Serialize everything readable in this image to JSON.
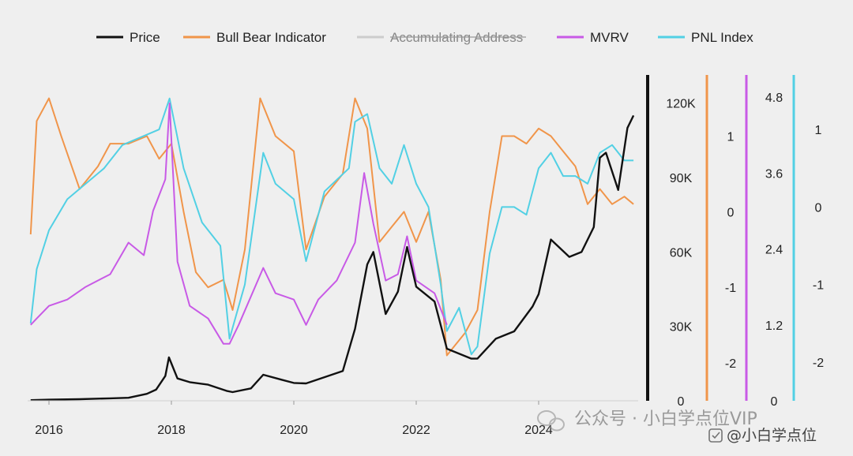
{
  "chart_data": {
    "type": "line",
    "x_ticks": [
      "2016",
      "2018",
      "2020",
      "2022",
      "2024"
    ],
    "legend_position": "top",
    "grid": false,
    "series": [
      {
        "name": "Price",
        "color": "#111111",
        "axis": "price",
        "enabled": true,
        "x": [
          2015.7,
          2016.0,
          2016.5,
          2017.0,
          2017.3,
          2017.6,
          2017.75,
          2017.9,
          2017.96,
          2018.1,
          2018.3,
          2018.6,
          2018.9,
          2019.0,
          2019.3,
          2019.5,
          2019.8,
          2020.0,
          2020.2,
          2020.5,
          2020.8,
          2021.0,
          2021.2,
          2021.3,
          2021.5,
          2021.7,
          2021.85,
          2022.0,
          2022.3,
          2022.5,
          2022.9,
          2023.0,
          2023.3,
          2023.6,
          2023.9,
          2024.0,
          2024.2,
          2024.5,
          2024.7,
          2024.9,
          2025.0,
          2025.1,
          2025.3,
          2025.45,
          2025.55
        ],
        "values": [
          250,
          430,
          650,
          1000,
          1200,
          2800,
          4500,
          10000,
          17500,
          9000,
          7500,
          6500,
          4000,
          3500,
          5000,
          10500,
          8500,
          7200,
          7000,
          9500,
          12000,
          29000,
          55000,
          60000,
          35000,
          44000,
          62000,
          46000,
          40000,
          21000,
          17000,
          17000,
          25000,
          28000,
          38000,
          43000,
          65000,
          58000,
          60000,
          70000,
          98000,
          100000,
          85000,
          110000,
          115000
        ]
      },
      {
        "name": "Bull Bear Indicator",
        "color": "#f0954a",
        "axis": "indicator",
        "enabled": true,
        "x": [
          2015.7,
          2015.8,
          2016.0,
          2016.2,
          2016.5,
          2016.8,
          2017.0,
          2017.3,
          2017.6,
          2017.8,
          2018.0,
          2018.2,
          2018.4,
          2018.6,
          2018.85,
          2019.0,
          2019.2,
          2019.45,
          2019.7,
          2020.0,
          2020.2,
          2020.5,
          2020.8,
          2021.0,
          2021.2,
          2021.4,
          2021.6,
          2021.8,
          2022.0,
          2022.2,
          2022.4,
          2022.5,
          2022.8,
          2023.0,
          2023.2,
          2023.4,
          2023.6,
          2023.8,
          2024.0,
          2024.2,
          2024.4,
          2024.6,
          2024.8,
          2025.0,
          2025.2,
          2025.4,
          2025.55
        ],
        "values": [
          -0.3,
          1.2,
          1.5,
          1.0,
          0.3,
          0.6,
          0.9,
          0.9,
          1.0,
          0.7,
          0.9,
          0.0,
          -0.8,
          -1.0,
          -0.9,
          -1.3,
          -0.5,
          1.5,
          1.0,
          0.8,
          -0.5,
          0.2,
          0.5,
          1.5,
          1.1,
          -0.4,
          -0.2,
          0.0,
          -0.4,
          0.0,
          -0.9,
          -1.9,
          -1.6,
          -1.3,
          0.0,
          1.0,
          1.0,
          0.9,
          1.1,
          1.0,
          0.8,
          0.6,
          0.1,
          0.3,
          0.1,
          0.2,
          0.1
        ]
      },
      {
        "name": "Accumulating Address",
        "color": "#cccccc",
        "axis": "none",
        "enabled": false,
        "x": [],
        "values": []
      },
      {
        "name": "MVRV",
        "color": "#c85ae6",
        "axis": "mvrv",
        "enabled": true,
        "x": [
          2015.7,
          2015.8,
          2016.0,
          2016.3,
          2016.6,
          2017.0,
          2017.3,
          2017.55,
          2017.7,
          2017.9,
          2017.97,
          2018.1,
          2018.3,
          2018.6,
          2018.85,
          2018.95,
          2019.1,
          2019.5,
          2019.7,
          2020.0,
          2020.2,
          2020.4,
          2020.7,
          2021.0,
          2021.15,
          2021.3,
          2021.5,
          2021.7,
          2021.85,
          2022.0,
          2022.3,
          2022.5
        ],
        "values": [
          1.2,
          1.3,
          1.5,
          1.6,
          1.8,
          2.0,
          2.5,
          2.3,
          3.0,
          3.5,
          4.7,
          2.2,
          1.5,
          1.3,
          0.9,
          0.9,
          1.2,
          2.1,
          1.7,
          1.6,
          1.2,
          1.6,
          1.9,
          2.5,
          3.6,
          2.8,
          1.9,
          2.0,
          2.6,
          1.9,
          1.7,
          1.2
        ]
      },
      {
        "name": "PNL Index",
        "color": "#52d0e4",
        "axis": "pnl",
        "enabled": true,
        "x": [
          2015.7,
          2015.8,
          2016.0,
          2016.3,
          2016.6,
          2016.9,
          2017.2,
          2017.5,
          2017.8,
          2017.97,
          2018.2,
          2018.5,
          2018.8,
          2018.95,
          2019.2,
          2019.5,
          2019.7,
          2020.0,
          2020.2,
          2020.5,
          2020.9,
          2021.0,
          2021.2,
          2021.4,
          2021.6,
          2021.8,
          2022.0,
          2022.2,
          2022.4,
          2022.5,
          2022.7,
          2022.9,
          2023.0,
          2023.2,
          2023.4,
          2023.6,
          2023.8,
          2024.0,
          2024.2,
          2024.4,
          2024.6,
          2024.8,
          2025.0,
          2025.2,
          2025.4,
          2025.55
        ],
        "values": [
          -1.5,
          -0.8,
          -0.3,
          0.1,
          0.3,
          0.5,
          0.8,
          0.9,
          1.0,
          1.4,
          0.5,
          -0.2,
          -0.5,
          -1.7,
          -1.0,
          0.7,
          0.3,
          0.1,
          -0.7,
          0.2,
          0.5,
          1.1,
          1.2,
          0.5,
          0.3,
          0.8,
          0.3,
          0.0,
          -1.0,
          -1.6,
          -1.3,
          -1.9,
          -1.8,
          -0.6,
          0.0,
          0.0,
          -0.1,
          0.5,
          0.7,
          0.4,
          0.4,
          0.3,
          0.7,
          0.8,
          0.6,
          0.6
        ]
      }
    ],
    "axes": [
      {
        "id": "price",
        "color": "#111111",
        "range": [
          0,
          125000
        ],
        "ticks": [
          "0",
          "30K",
          "60K",
          "90K",
          "120K"
        ],
        "tick_values": [
          0,
          30000,
          60000,
          90000,
          120000
        ]
      },
      {
        "id": "indicator",
        "color": "#f0954a",
        "range": [
          -2.5,
          1.6
        ],
        "ticks": [
          "-2",
          "-1",
          "0",
          "1"
        ],
        "tick_values": [
          -2,
          -1,
          0,
          1
        ]
      },
      {
        "id": "mvrv",
        "color": "#c85ae6",
        "range": [
          0,
          4.9
        ],
        "ticks": [
          "0",
          "1.2",
          "2.4",
          "3.6",
          "4.8"
        ],
        "tick_values": [
          0,
          1.2,
          2.4,
          3.6,
          4.8
        ]
      },
      {
        "id": "pnl",
        "color": "#52d0e4",
        "range": [
          -2.5,
          1.5
        ],
        "ticks": [
          "-2",
          "-1",
          "0",
          "1"
        ],
        "tick_values": [
          -2,
          -1,
          0,
          1
        ]
      }
    ]
  },
  "watermark": {
    "channel": "公众号 · 小白学点位VIP",
    "badge": "@小白学点位"
  }
}
